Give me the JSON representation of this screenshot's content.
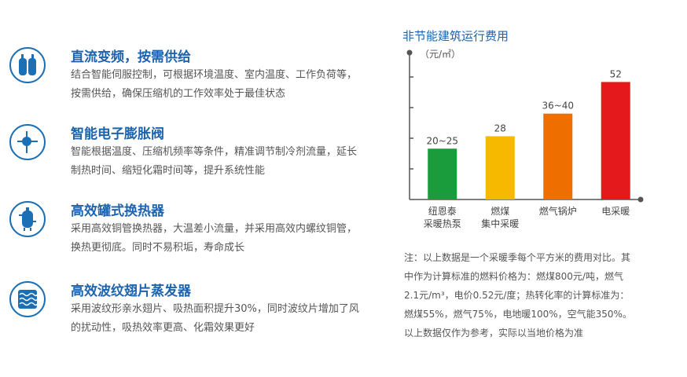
{
  "features": [
    {
      "icon": "compressor-icon",
      "title": "直流变频，按需供给",
      "desc": "结合智能伺服控制，可根据环境温度、室内温度、工作负荷等，按需供给，确保压缩机的工作效率处于最佳状态"
    },
    {
      "icon": "expansion-valve-icon",
      "title": "智能电子膨胀阀",
      "desc": "智能根据温度、压缩机频率等条件，精准调节制冷剂流量，延长制热时间、缩短化霜时间等，提升系统性能"
    },
    {
      "icon": "tank-heat-exchanger-icon",
      "title": "高效罐式换热器",
      "desc": "采用高效铜管换热器，大温差小流量，并采用高效内螺纹铜管，换热更彻底。同时不易积垢，寿命成长"
    },
    {
      "icon": "evaporator-icon",
      "title": "高效波纹翅片蒸发器",
      "desc": "采用波纹形亲水翅片、吸热面积提升30%，同时波纹片增加了风的扰动性，吸热效率更高、化霜效果更好"
    }
  ],
  "chart_data": {
    "type": "bar",
    "title": "非节能建筑运行费用",
    "ylabel": "（元/㎡）",
    "categories": [
      "纽恩泰\n采暖热泵",
      "燃煤\n集中采暖",
      "燃气锅炉",
      "电采暖"
    ],
    "values": [
      22.5,
      28,
      38,
      52
    ],
    "data_labels": [
      "20~25",
      "28",
      "36~40",
      "52"
    ],
    "colors": [
      "#1a9b3c",
      "#f7b800",
      "#ee6f00",
      "#e4191c"
    ],
    "axis_color": "#555555",
    "ylim": [
      0,
      65
    ],
    "grid": false
  },
  "note": "注：以上数据是一个采暖季每个平方米的费用对比。其中作为计算标准的燃料价格为：燃煤800元/吨，燃气2.1元/m³，电价0.52元/度；热转化率的计算标准为：燃煤55%，燃气75%，电地暖100%，空气能350%。以上数据仅作为参考，实际以当地价格为准"
}
